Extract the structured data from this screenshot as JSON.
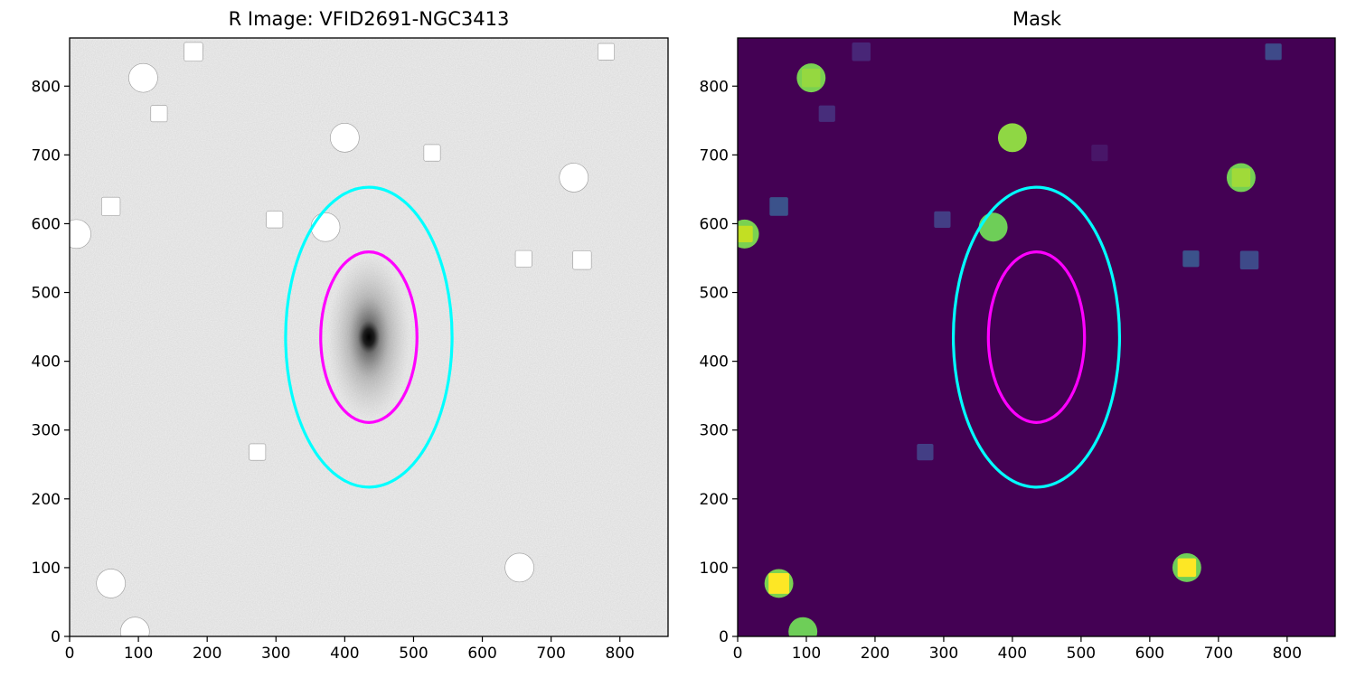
{
  "chart_data": [
    {
      "type": "image",
      "title": "R Image: VFID2691-NGC3413",
      "colormap": "gray_r",
      "xlim": [
        0,
        870
      ],
      "ylim": [
        0,
        870
      ],
      "xticks": [
        0,
        100,
        200,
        300,
        400,
        500,
        600,
        700,
        800
      ],
      "yticks": [
        0,
        100,
        200,
        300,
        400,
        500,
        600,
        700,
        800
      ],
      "galaxy_center": [
        435,
        435
      ],
      "ellipses": [
        {
          "color": "#00ffff",
          "center": [
            435,
            435
          ],
          "semi_axis_x": 121,
          "semi_axis_y": 218
        },
        {
          "color": "#ff00ff",
          "center": [
            435,
            435
          ],
          "semi_axis_x": 70,
          "semi_axis_y": 124
        }
      ],
      "masked_circles": [
        {
          "x": 107,
          "y": 812,
          "r": 21
        },
        {
          "x": 400,
          "y": 725,
          "r": 21
        },
        {
          "x": 733,
          "y": 667,
          "r": 21
        },
        {
          "x": 372,
          "y": 595,
          "r": 21
        },
        {
          "x": 10,
          "y": 585,
          "r": 21
        },
        {
          "x": 60,
          "y": 77,
          "r": 21
        },
        {
          "x": 654,
          "y": 100,
          "r": 21
        },
        {
          "x": 95,
          "y": 7,
          "r": 21
        }
      ],
      "masked_squares": [
        {
          "x": 180,
          "y": 850,
          "s": 27
        },
        {
          "x": 780,
          "y": 850,
          "s": 24
        },
        {
          "x": 130,
          "y": 760,
          "s": 24
        },
        {
          "x": 527,
          "y": 703,
          "s": 24
        },
        {
          "x": 60,
          "y": 625,
          "s": 27
        },
        {
          "x": 298,
          "y": 606,
          "s": 24
        },
        {
          "x": 660,
          "y": 549,
          "s": 24
        },
        {
          "x": 745,
          "y": 547,
          "s": 27
        },
        {
          "x": 273,
          "y": 268,
          "s": 24
        }
      ]
    },
    {
      "type": "image",
      "title": "Mask",
      "colormap": "viridis",
      "background_color": "#440154",
      "xlim": [
        0,
        870
      ],
      "ylim": [
        0,
        870
      ],
      "xticks": [
        0,
        100,
        200,
        300,
        400,
        500,
        600,
        700,
        800
      ],
      "yticks": [
        0,
        100,
        200,
        300,
        400,
        500,
        600,
        700,
        800
      ],
      "ellipses": [
        {
          "color": "#00ffff",
          "center": [
            435,
            435
          ],
          "semi_axis_x": 121,
          "semi_axis_y": 218
        },
        {
          "color": "#ff00ff",
          "center": [
            435,
            435
          ],
          "semi_axis_x": 70,
          "semi_axis_y": 124
        }
      ],
      "mask_circles": [
        {
          "x": 107,
          "y": 812,
          "r": 21,
          "color": "#7ad151"
        },
        {
          "x": 400,
          "y": 725,
          "r": 21,
          "color": "#8fd744"
        },
        {
          "x": 733,
          "y": 667,
          "r": 21,
          "color": "#75d054"
        },
        {
          "x": 372,
          "y": 595,
          "r": 21,
          "color": "#6ece58"
        },
        {
          "x": 10,
          "y": 585,
          "r": 21,
          "color": "#7ad151"
        },
        {
          "x": 60,
          "y": 77,
          "r": 21,
          "color": "#7ad151"
        },
        {
          "x": 654,
          "y": 100,
          "r": 21,
          "color": "#6ece58"
        },
        {
          "x": 95,
          "y": 7,
          "r": 21,
          "color": "#6ece58"
        }
      ],
      "mask_squares": [
        {
          "x": 180,
          "y": 850,
          "s": 27,
          "color": "#482677"
        },
        {
          "x": 780,
          "y": 850,
          "s": 24,
          "color": "#3e4a89"
        },
        {
          "x": 130,
          "y": 760,
          "s": 24,
          "color": "#472d7b"
        },
        {
          "x": 527,
          "y": 703,
          "s": 24,
          "color": "#481668"
        },
        {
          "x": 60,
          "y": 625,
          "s": 27,
          "color": "#3b528b"
        },
        {
          "x": 298,
          "y": 606,
          "s": 24,
          "color": "#433e85"
        },
        {
          "x": 660,
          "y": 549,
          "s": 24,
          "color": "#3b528b"
        },
        {
          "x": 745,
          "y": 547,
          "s": 27,
          "color": "#3e4a89"
        },
        {
          "x": 273,
          "y": 268,
          "s": 24,
          "color": "#433e85"
        },
        {
          "x": 107,
          "y": 812,
          "s": 27,
          "color": "#95d840"
        },
        {
          "x": 733,
          "y": 667,
          "s": 27,
          "color": "#a0da39"
        },
        {
          "x": 10,
          "y": 585,
          "s": 24,
          "color": "#c2df23"
        },
        {
          "x": 60,
          "y": 77,
          "s": 30,
          "color": "#fde725"
        },
        {
          "x": 654,
          "y": 100,
          "s": 27,
          "color": "#fde725"
        }
      ]
    }
  ]
}
